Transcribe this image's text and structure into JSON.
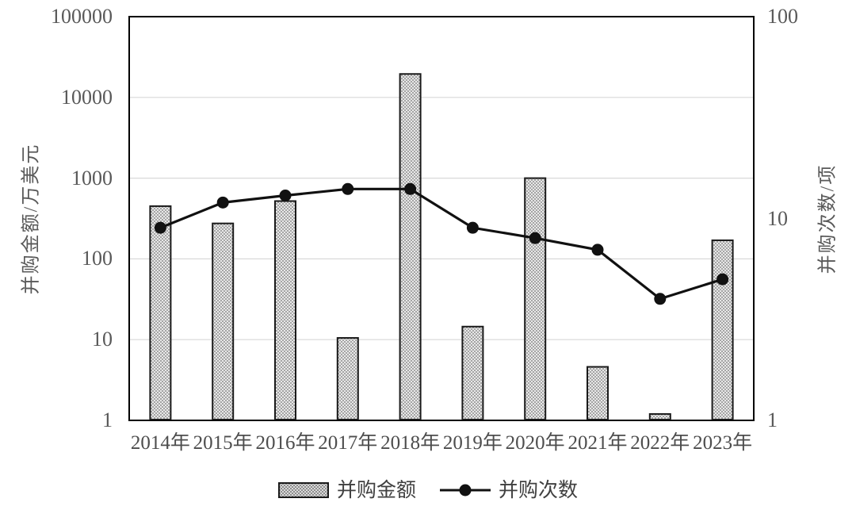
{
  "chart_data": {
    "type": "bar",
    "subtype": "combo-bar-line-dual-log-axis",
    "categories": [
      "2014年",
      "2015年",
      "2016年",
      "2017年",
      "2018年",
      "2019年",
      "2020年",
      "2021年",
      "2022年",
      "2023年"
    ],
    "series": [
      {
        "name": "并购金额",
        "type": "bar",
        "axis": "left",
        "values": [
          450,
          275,
          520,
          10.5,
          19500,
          14.5,
          1000,
          4.6,
          1.2,
          170
        ]
      },
      {
        "name": "并购次数",
        "type": "line",
        "axis": "right",
        "values": [
          9,
          12,
          13,
          14,
          14,
          9,
          8,
          7,
          4,
          5
        ]
      }
    ],
    "left_axis": {
      "label": "并购金额/万美元",
      "scale": "log",
      "range": [
        1,
        100000
      ],
      "ticks": [
        "100000",
        "10000",
        "1000",
        "100",
        "10",
        "1"
      ]
    },
    "right_axis": {
      "label": "并购次数/项",
      "scale": "log",
      "range": [
        1,
        100
      ],
      "ticks": [
        "100",
        "10",
        "1"
      ]
    },
    "grid": "horizontal-log-decades",
    "legend_position": "bottom",
    "colors": {
      "bar_fill_base": "#e8e8e8",
      "bar_dot": "#8a8a8a",
      "bar_border": "#1a1a1a",
      "line": "#111111",
      "marker": "#111111",
      "gridline": "#d9d9d9",
      "plot_border": "#000000",
      "axis_text": "#595959"
    }
  },
  "legend": {
    "items": [
      {
        "label": "并购金额",
        "swatch": "hatched-bar"
      },
      {
        "label": "并购次数",
        "swatch": "line-with-dot"
      }
    ]
  }
}
